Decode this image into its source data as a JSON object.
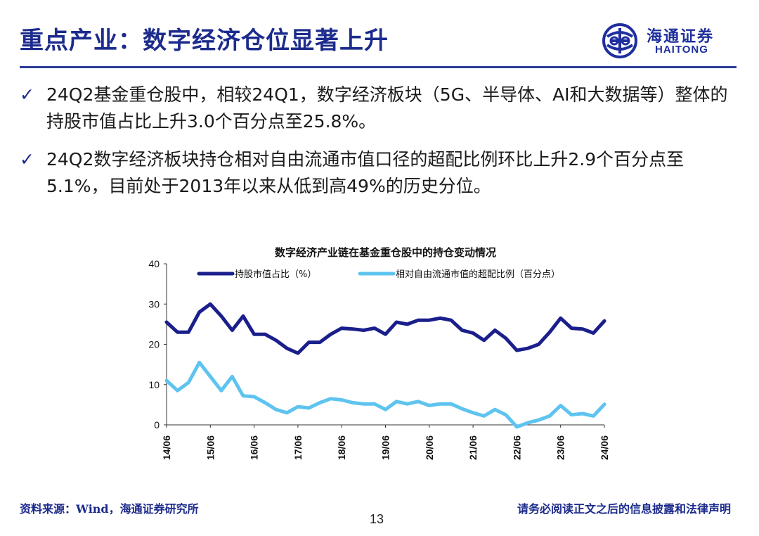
{
  "header": {
    "title": "重点产业：数字经济仓位显著上升",
    "logo_cn": "海通证券",
    "logo_en": "HAITONG"
  },
  "bullets": [
    {
      "check": "✓",
      "text": "24Q2基金重仓股中，相较24Q1，数字经济板块（5G、半导体、AI和大数据等）整体的持股市值占比上升3.0个百分点至25.8%。"
    },
    {
      "check": "✓",
      "text": "24Q2数字经济板块持仓相对自由流通市值口径的超配比例环比上升2.9个百分点至5.1%，目前处于2013年以来从低到高49%的历史分位。"
    }
  ],
  "chart_data": {
    "type": "line",
    "title": "数字经济产业链在基金重仓股中的持仓变动情况",
    "xlabel": "",
    "ylabel": "",
    "ylim": [
      0,
      40
    ],
    "y_ticks": [
      "0",
      "10",
      "20",
      "30",
      "40"
    ],
    "x_tick_labels": [
      "14/06",
      "15/06",
      "16/06",
      "17/06",
      "18/06",
      "19/06",
      "20/06",
      "21/06",
      "22/06",
      "23/06",
      "24/06"
    ],
    "legend_position": "top",
    "grid": false,
    "x": [
      "14/06",
      "14/09",
      "14/12",
      "15/03",
      "15/06",
      "15/09",
      "15/12",
      "16/03",
      "16/06",
      "16/09",
      "16/12",
      "17/03",
      "17/06",
      "17/09",
      "17/12",
      "18/03",
      "18/06",
      "18/09",
      "18/12",
      "19/03",
      "19/06",
      "19/09",
      "19/12",
      "20/03",
      "20/06",
      "20/09",
      "20/12",
      "21/03",
      "21/06",
      "21/09",
      "21/12",
      "22/03",
      "22/06",
      "22/09",
      "22/12",
      "23/03",
      "23/06",
      "23/09",
      "23/12",
      "24/03",
      "24/06"
    ],
    "series": [
      {
        "name": "持股市值占比（%）",
        "color": "#1a1f8c",
        "values": [
          25.5,
          23,
          23,
          28,
          30,
          27,
          23.5,
          27,
          22.5,
          22.5,
          21,
          19,
          17.8,
          20.5,
          20.5,
          22.5,
          24,
          23.8,
          23.5,
          24,
          22.5,
          25.5,
          25,
          26,
          26,
          26.5,
          26,
          23.5,
          22.8,
          21,
          23.5,
          21.5,
          18.5,
          19,
          20,
          23,
          26.5,
          24,
          23.8,
          22.8,
          25.8
        ]
      },
      {
        "name": "相对自由流通市值的超配比例（百分点）",
        "color": "#5ec4ef",
        "values": [
          11,
          8.5,
          10.5,
          15.5,
          12,
          8.5,
          12,
          7.2,
          7,
          5.5,
          3.8,
          3,
          4.5,
          4.2,
          5.5,
          6.5,
          6.2,
          5.5,
          5.2,
          5.2,
          3.8,
          5.8,
          5.2,
          5.8,
          4.8,
          5.2,
          5.2,
          4,
          3,
          2.2,
          3.8,
          2.5,
          -0.5,
          0.5,
          1.2,
          2.2,
          4.8,
          2.5,
          2.8,
          2.2,
          5.1
        ]
      }
    ]
  },
  "footer": {
    "source": "资料来源：Wind，海通证券研究所",
    "disclaimer": "请务必阅读正文之后的信息披露和法律声明",
    "page_number": "13"
  }
}
